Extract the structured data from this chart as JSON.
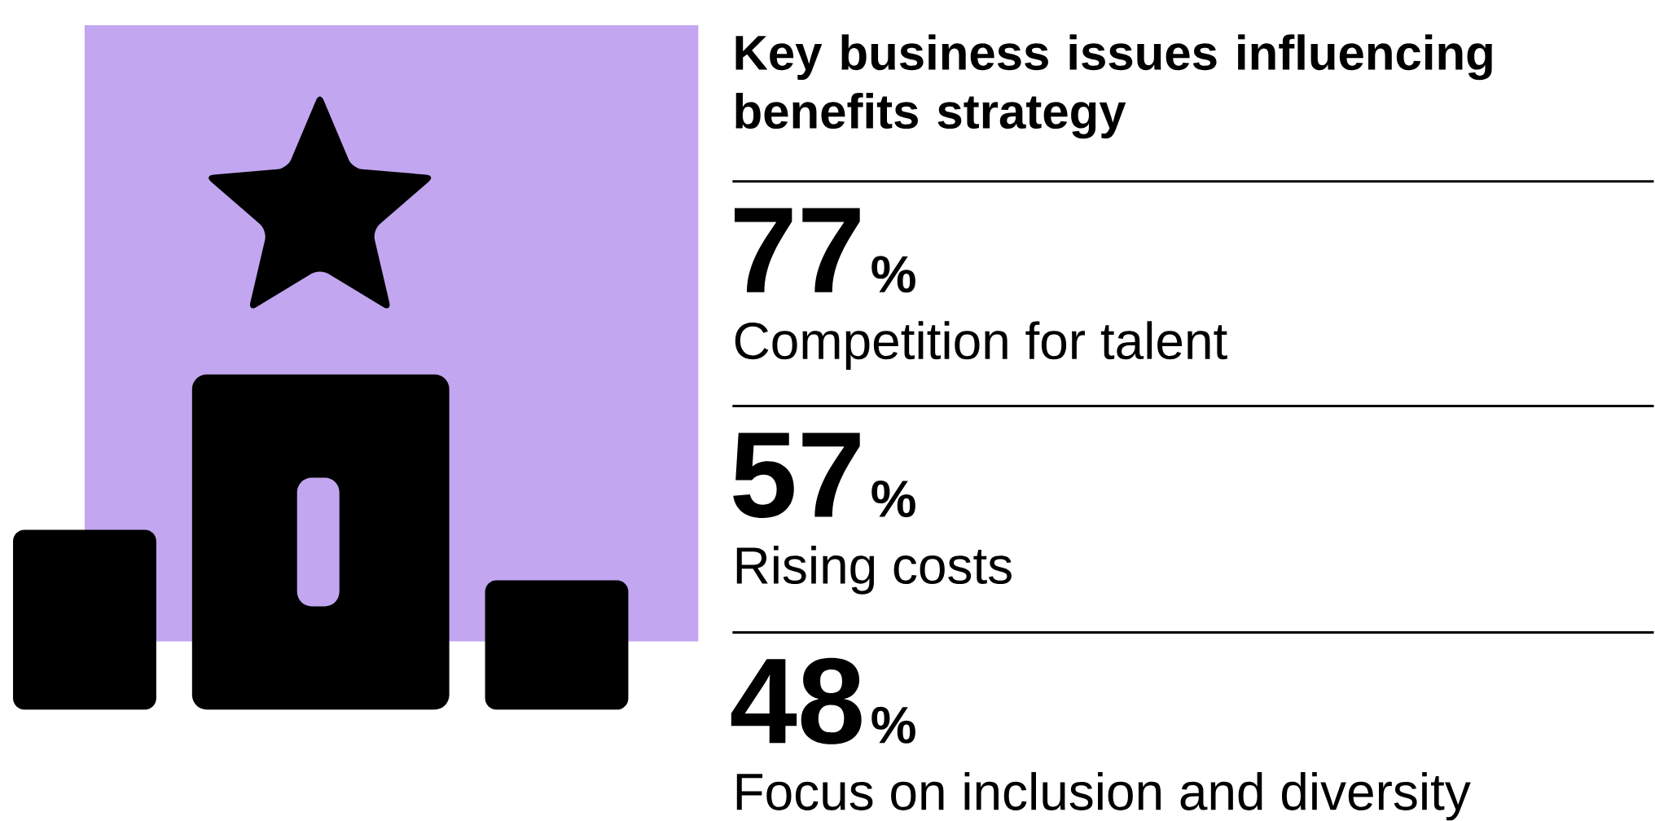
{
  "chart_data": {
    "type": "other",
    "title": "Key business issues influencing benefits strategy",
    "categories": [
      "Competition for talent",
      "Rising costs",
      "Focus on inclusion and diversity"
    ],
    "values": [
      77,
      57,
      48
    ],
    "data_labels": true,
    "annotations": [
      "%",
      "%",
      "%"
    ]
  }
}
